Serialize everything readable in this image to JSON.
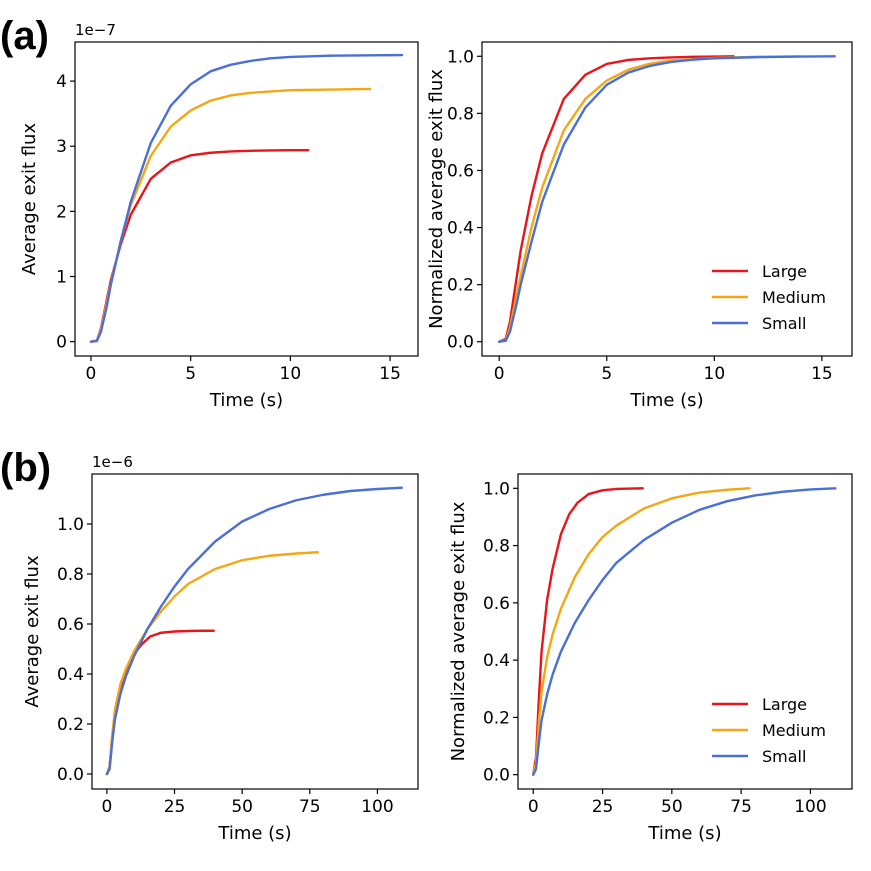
{
  "panel_labels": [
    "(a)",
    "(b)"
  ],
  "legend": [
    "Large",
    "Medium",
    "Small"
  ],
  "colors": {
    "Large": "#e8151b",
    "Medium": "#f5a614",
    "Small": "#4a6fd6",
    "axis": "#000000"
  },
  "chart_data": [
    {
      "id": "a-left",
      "type": "line",
      "title": "",
      "xlabel": "Time (s)",
      "ylabel": "Average exit flux",
      "offset_text": "1e−7",
      "xlim": [
        -0.8,
        16.4
      ],
      "ylim": [
        -0.22,
        4.6
      ],
      "xticks": [
        0,
        5,
        10,
        15
      ],
      "xtick_labels": [
        "0",
        "5",
        "10",
        "15"
      ],
      "yticks": [
        0,
        1,
        2,
        3,
        4
      ],
      "ytick_labels": [
        "0",
        "1",
        "2",
        "3",
        "4"
      ],
      "legend": false,
      "series": [
        {
          "name": "Large",
          "color": "#e8151b",
          "x": [
            0,
            0.3,
            0.5,
            0.8,
            1.0,
            1.5,
            2.0,
            3.0,
            4.0,
            5.0,
            6.0,
            7.0,
            8.0,
            9.0,
            10.0,
            10.9
          ],
          "y": [
            0,
            0.02,
            0.2,
            0.65,
            0.95,
            1.5,
            1.95,
            2.5,
            2.75,
            2.86,
            2.9,
            2.92,
            2.93,
            2.935,
            2.94,
            2.94
          ]
        },
        {
          "name": "Medium",
          "color": "#f5a614",
          "x": [
            0,
            0.3,
            0.5,
            0.8,
            1.0,
            1.5,
            2.0,
            3.0,
            4.0,
            5.0,
            6.0,
            7.0,
            8.0,
            10.0,
            12.0,
            14.0
          ],
          "y": [
            0,
            0.02,
            0.18,
            0.6,
            0.9,
            1.55,
            2.1,
            2.85,
            3.3,
            3.55,
            3.7,
            3.78,
            3.82,
            3.86,
            3.87,
            3.88
          ]
        },
        {
          "name": "Small",
          "color": "#4a6fd6",
          "x": [
            0,
            0.3,
            0.5,
            0.8,
            1.0,
            1.5,
            2.0,
            3.0,
            4.0,
            5.0,
            6.0,
            7.0,
            8.0,
            9.0,
            10.0,
            12.0,
            14.0,
            15.6
          ],
          "y": [
            0,
            0.01,
            0.15,
            0.55,
            0.88,
            1.55,
            2.15,
            3.05,
            3.62,
            3.95,
            4.15,
            4.25,
            4.31,
            4.35,
            4.37,
            4.39,
            4.395,
            4.4
          ]
        }
      ]
    },
    {
      "id": "a-right",
      "type": "line",
      "title": "",
      "xlabel": "Time (s)",
      "ylabel": "Normalized average exit flux",
      "offset_text": "",
      "xlim": [
        -0.8,
        16.4
      ],
      "ylim": [
        -0.05,
        1.05
      ],
      "xticks": [
        0,
        5,
        10,
        15
      ],
      "xtick_labels": [
        "0",
        "5",
        "10",
        "15"
      ],
      "yticks": [
        0.0,
        0.2,
        0.4,
        0.6,
        0.8,
        1.0
      ],
      "ytick_labels": [
        "0.0",
        "0.2",
        "0.4",
        "0.6",
        "0.8",
        "1.0"
      ],
      "legend": true,
      "legend_loc": "lower-right",
      "series": [
        {
          "name": "Large",
          "color": "#e8151b",
          "x": [
            0,
            0.3,
            0.5,
            0.8,
            1.0,
            1.5,
            2.0,
            3.0,
            4.0,
            5.0,
            6.0,
            7.0,
            8.0,
            9.0,
            10.0,
            10.9
          ],
          "y": [
            0,
            0.01,
            0.07,
            0.22,
            0.32,
            0.51,
            0.66,
            0.85,
            0.935,
            0.973,
            0.987,
            0.993,
            0.996,
            0.998,
            0.999,
            1.0
          ]
        },
        {
          "name": "Medium",
          "color": "#f5a614",
          "x": [
            0,
            0.3,
            0.5,
            0.8,
            1.0,
            1.5,
            2.0,
            3.0,
            4.0,
            5.0,
            6.0,
            7.0,
            8.0,
            10.0,
            12.0,
            14.0
          ],
          "y": [
            0,
            0.005,
            0.05,
            0.16,
            0.23,
            0.4,
            0.54,
            0.74,
            0.85,
            0.915,
            0.953,
            0.974,
            0.985,
            0.994,
            0.998,
            1.0
          ]
        },
        {
          "name": "Small",
          "color": "#4a6fd6",
          "x": [
            0,
            0.3,
            0.5,
            0.8,
            1.0,
            1.5,
            2.0,
            3.0,
            4.0,
            5.0,
            6.0,
            7.0,
            8.0,
            9.0,
            10.0,
            12.0,
            14.0,
            15.6
          ],
          "y": [
            0,
            0.003,
            0.035,
            0.13,
            0.2,
            0.35,
            0.49,
            0.69,
            0.82,
            0.9,
            0.943,
            0.966,
            0.98,
            0.988,
            0.993,
            0.997,
            0.999,
            1.0
          ]
        }
      ]
    },
    {
      "id": "b-left",
      "type": "line",
      "title": "",
      "xlabel": "Time (s)",
      "ylabel": "Average exit flux",
      "offset_text": "1e−6",
      "xlim": [
        -5.5,
        115
      ],
      "ylim": [
        -0.06,
        1.2
      ],
      "xticks": [
        0,
        25,
        50,
        75,
        100
      ],
      "xtick_labels": [
        "0",
        "25",
        "50",
        "75",
        "100"
      ],
      "yticks": [
        0.0,
        0.2,
        0.4,
        0.6,
        0.8,
        1.0
      ],
      "ytick_labels": [
        "0.0",
        "0.2",
        "0.4",
        "0.6",
        "0.8",
        "1.0"
      ],
      "legend": false,
      "series": [
        {
          "name": "Large",
          "color": "#e8151b",
          "x": [
            0,
            1,
            2,
            3,
            5,
            7,
            10,
            13,
            16,
            20,
            25,
            30,
            35,
            39.5
          ],
          "y": [
            0,
            0.03,
            0.15,
            0.25,
            0.35,
            0.41,
            0.48,
            0.52,
            0.55,
            0.565,
            0.57,
            0.572,
            0.573,
            0.573
          ]
        },
        {
          "name": "Medium",
          "color": "#f5a614",
          "x": [
            0,
            1,
            2,
            3,
            5,
            7,
            10,
            15,
            20,
            25,
            30,
            40,
            50,
            60,
            70,
            78
          ],
          "y": [
            0,
            0.03,
            0.16,
            0.26,
            0.36,
            0.42,
            0.49,
            0.58,
            0.65,
            0.71,
            0.76,
            0.82,
            0.855,
            0.873,
            0.882,
            0.887
          ]
        },
        {
          "name": "Small",
          "color": "#4a6fd6",
          "x": [
            0,
            1,
            2,
            3,
            5,
            7,
            10,
            15,
            20,
            25,
            30,
            40,
            50,
            60,
            70,
            80,
            90,
            100,
            109
          ],
          "y": [
            0,
            0.02,
            0.13,
            0.22,
            0.32,
            0.39,
            0.47,
            0.58,
            0.67,
            0.75,
            0.82,
            0.93,
            1.01,
            1.06,
            1.095,
            1.117,
            1.132,
            1.14,
            1.145
          ]
        }
      ]
    },
    {
      "id": "b-right",
      "type": "line",
      "title": "",
      "xlabel": "Time (s)",
      "ylabel": "Normalized average exit flux",
      "offset_text": "",
      "xlim": [
        -5.5,
        115
      ],
      "ylim": [
        -0.05,
        1.05
      ],
      "xticks": [
        0,
        25,
        50,
        75,
        100
      ],
      "xtick_labels": [
        "0",
        "25",
        "50",
        "75",
        "100"
      ],
      "yticks": [
        0.0,
        0.2,
        0.4,
        0.6,
        0.8,
        1.0
      ],
      "ytick_labels": [
        "0.0",
        "0.2",
        "0.4",
        "0.6",
        "0.8",
        "1.0"
      ],
      "legend": true,
      "legend_loc": "lower-right",
      "series": [
        {
          "name": "Large",
          "color": "#e8151b",
          "x": [
            0,
            1,
            2,
            3,
            5,
            7,
            10,
            13,
            16,
            20,
            25,
            30,
            35,
            39.5
          ],
          "y": [
            0,
            0.06,
            0.26,
            0.43,
            0.61,
            0.72,
            0.84,
            0.91,
            0.95,
            0.98,
            0.993,
            0.998,
            0.999,
            1.0
          ]
        },
        {
          "name": "Medium",
          "color": "#f5a614",
          "x": [
            0,
            1,
            2,
            3,
            5,
            7,
            10,
            15,
            20,
            25,
            30,
            40,
            50,
            60,
            70,
            78
          ],
          "y": [
            0,
            0.04,
            0.18,
            0.29,
            0.41,
            0.49,
            0.58,
            0.69,
            0.77,
            0.83,
            0.87,
            0.93,
            0.965,
            0.985,
            0.995,
            1.0
          ]
        },
        {
          "name": "Small",
          "color": "#4a6fd6",
          "x": [
            0,
            1,
            2,
            3,
            5,
            7,
            10,
            15,
            20,
            25,
            30,
            40,
            50,
            60,
            70,
            80,
            90,
            100,
            109
          ],
          "y": [
            0,
            0.02,
            0.11,
            0.19,
            0.28,
            0.35,
            0.43,
            0.53,
            0.61,
            0.68,
            0.74,
            0.82,
            0.88,
            0.925,
            0.955,
            0.975,
            0.988,
            0.996,
            1.0
          ]
        }
      ]
    }
  ]
}
